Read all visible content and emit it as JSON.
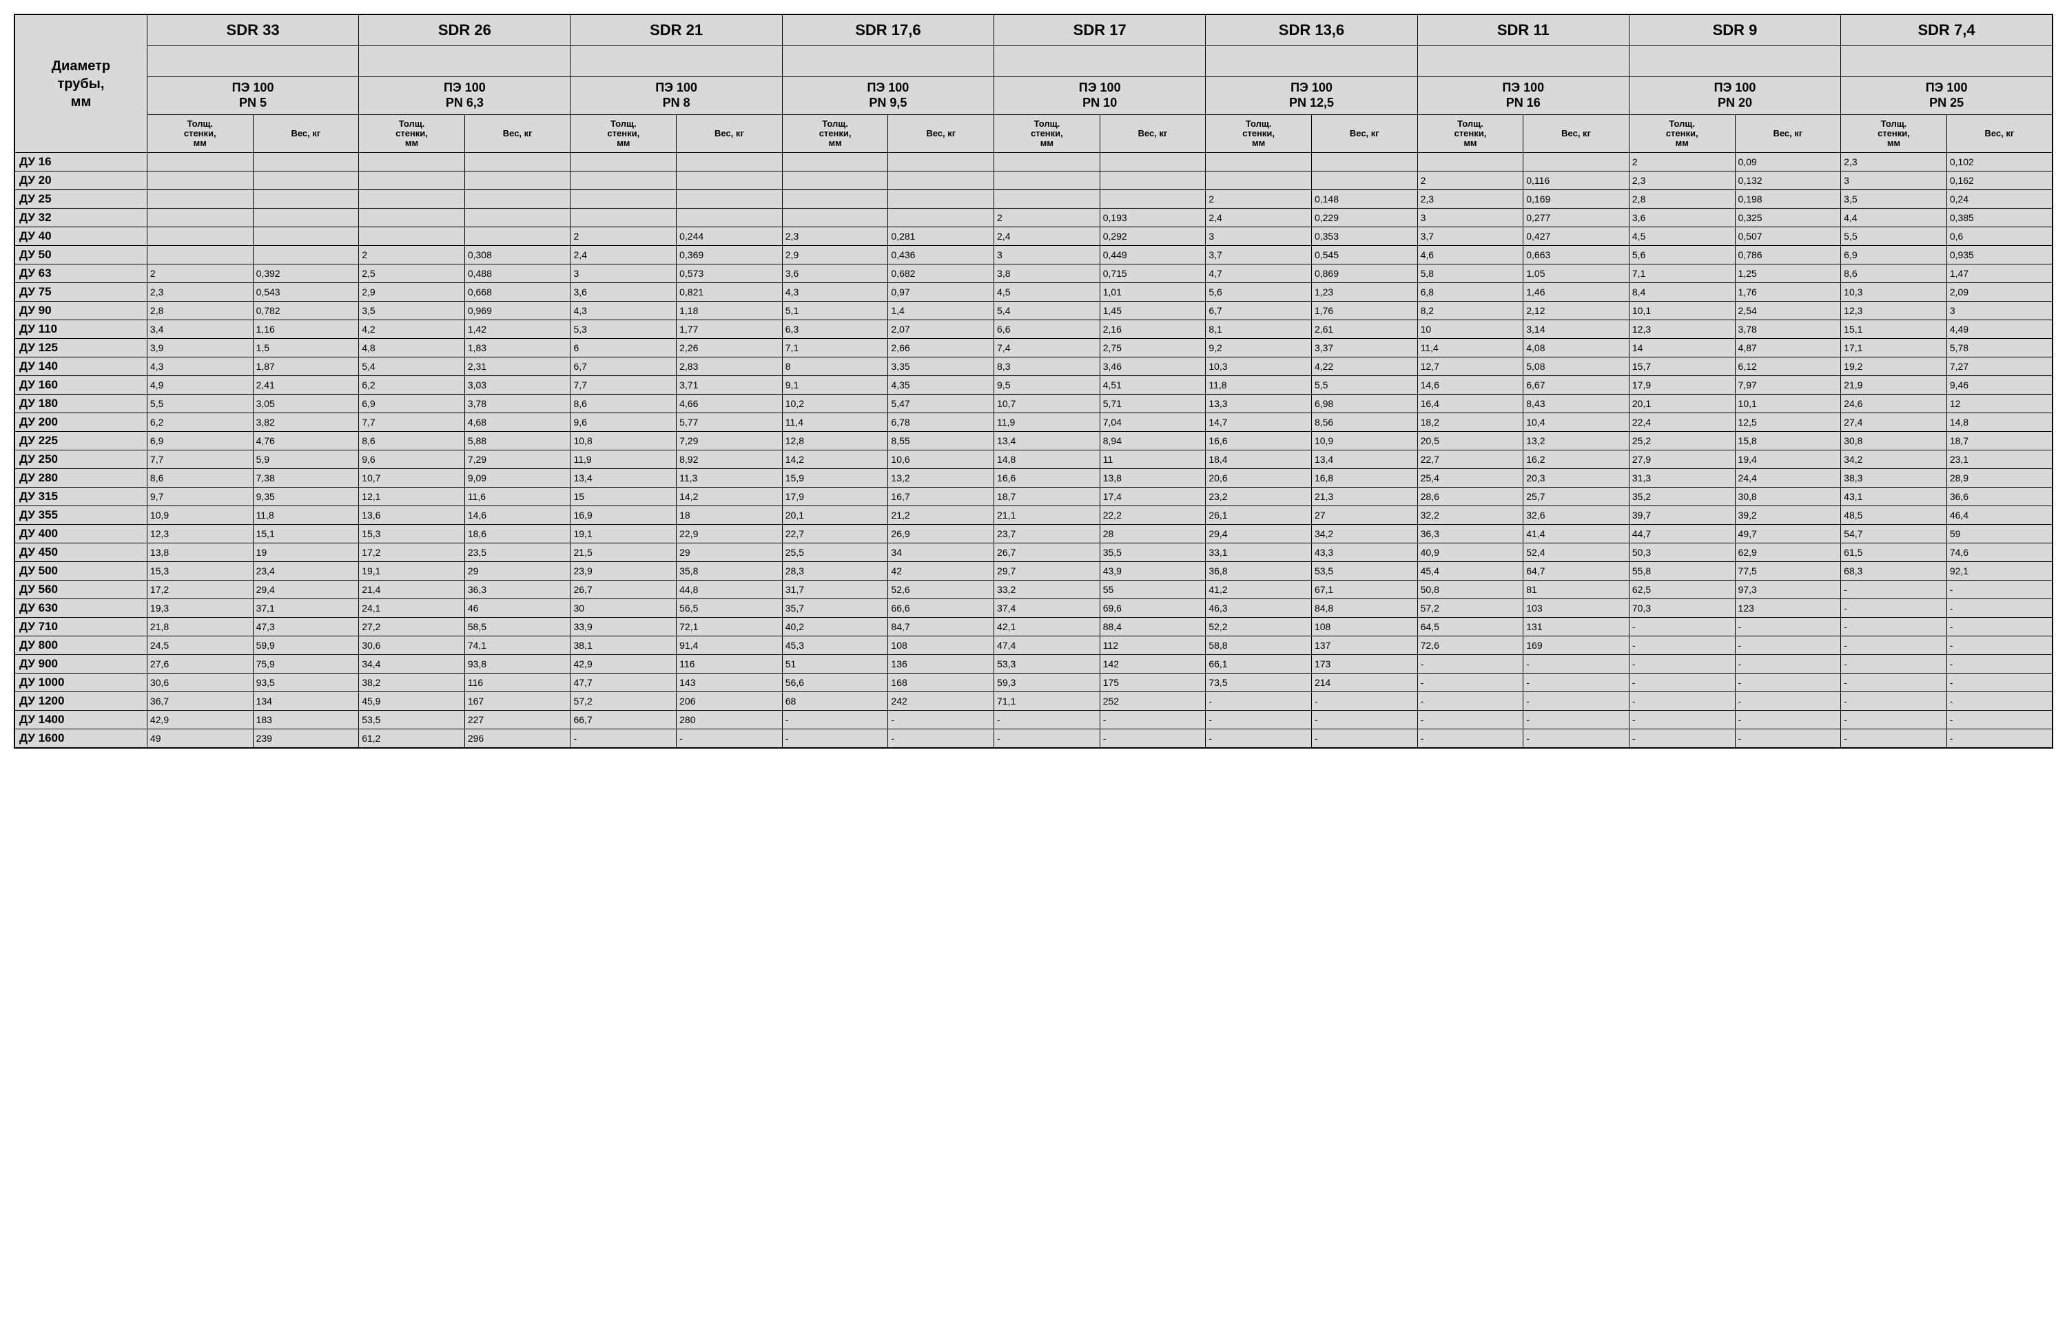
{
  "table": {
    "diameter_header": "Диаметр трубы, мм",
    "thickness_label": "Толщ. стенки, мм",
    "weight_label": "Вес, кг",
    "background_color": "#d9d9d9",
    "border_color": "#000000",
    "sdr_columns": [
      {
        "sdr": "SDR 33",
        "pn": "ПЭ 100\nPN 5"
      },
      {
        "sdr": "SDR 26",
        "pn": "ПЭ 100\nPN 6,3"
      },
      {
        "sdr": "SDR 21",
        "pn": "ПЭ 100\nPN 8"
      },
      {
        "sdr": "SDR 17,6",
        "pn": "ПЭ 100\nPN 9,5"
      },
      {
        "sdr": "SDR 17",
        "pn": "ПЭ 100\nPN 10"
      },
      {
        "sdr": "SDR 13,6",
        "pn": "ПЭ 100\nPN 12,5"
      },
      {
        "sdr": "SDR 11",
        "pn": "ПЭ 100\nPN 16"
      },
      {
        "sdr": "SDR 9",
        "pn": "ПЭ 100\nPN 20"
      },
      {
        "sdr": "SDR 7,4",
        "pn": "ПЭ 100\nPN 25"
      }
    ],
    "rows": [
      {
        "label": "ДУ 16",
        "cells": [
          "",
          "",
          "",
          "",
          "",
          "",
          "",
          "",
          "",
          "",
          "",
          "",
          "",
          "",
          "2",
          "0,09",
          "2,3",
          "0,102"
        ]
      },
      {
        "label": "ДУ 20",
        "cells": [
          "",
          "",
          "",
          "",
          "",
          "",
          "",
          "",
          "",
          "",
          "",
          "",
          "2",
          "0,116",
          "2,3",
          "0,132",
          "3",
          "0,162"
        ]
      },
      {
        "label": "ДУ 25",
        "cells": [
          "",
          "",
          "",
          "",
          "",
          "",
          "",
          "",
          "",
          "",
          "2",
          "0,148",
          "2,3",
          "0,169",
          "2,8",
          "0,198",
          "3,5",
          "0,24"
        ]
      },
      {
        "label": "ДУ 32",
        "cells": [
          "",
          "",
          "",
          "",
          "",
          "",
          "",
          "",
          "2",
          "0,193",
          "2,4",
          "0,229",
          "3",
          "0,277",
          "3,6",
          "0,325",
          "4,4",
          "0,385"
        ]
      },
      {
        "label": "ДУ 40",
        "cells": [
          "",
          "",
          "",
          "",
          "2",
          "0,244",
          "2,3",
          "0,281",
          "2,4",
          "0,292",
          "3",
          "0,353",
          "3,7",
          "0,427",
          "4,5",
          "0,507",
          "5,5",
          "0,6"
        ]
      },
      {
        "label": "ДУ 50",
        "cells": [
          "",
          "",
          "2",
          "0,308",
          "2,4",
          "0,369",
          "2,9",
          "0,436",
          "3",
          "0,449",
          "3,7",
          "0,545",
          "4,6",
          "0,663",
          "5,6",
          "0,786",
          "6,9",
          "0,935"
        ]
      },
      {
        "label": "ДУ 63",
        "cells": [
          "2",
          "0,392",
          "2,5",
          "0,488",
          "3",
          "0,573",
          "3,6",
          "0,682",
          "3,8",
          "0,715",
          "4,7",
          "0,869",
          "5,8",
          "1,05",
          "7,1",
          "1,25",
          "8,6",
          "1,47"
        ]
      },
      {
        "label": "ДУ 75",
        "cells": [
          "2,3",
          "0,543",
          "2,9",
          "0,668",
          "3,6",
          "0,821",
          "4,3",
          "0,97",
          "4,5",
          "1,01",
          "5,6",
          "1,23",
          "6,8",
          "1,46",
          "8,4",
          "1,76",
          "10,3",
          "2,09"
        ]
      },
      {
        "label": "ДУ 90",
        "cells": [
          "2,8",
          "0,782",
          "3,5",
          "0,969",
          "4,3",
          "1,18",
          "5,1",
          "1,4",
          "5,4",
          "1,45",
          "6,7",
          "1,76",
          "8,2",
          "2,12",
          "10,1",
          "2,54",
          "12,3",
          "3"
        ]
      },
      {
        "label": "ДУ 110",
        "cells": [
          "3,4",
          "1,16",
          "4,2",
          "1,42",
          "5,3",
          "1,77",
          "6,3",
          "2,07",
          "6,6",
          "2,16",
          "8,1",
          "2,61",
          "10",
          "3,14",
          "12,3",
          "3,78",
          "15,1",
          "4,49"
        ]
      },
      {
        "label": "ДУ 125",
        "cells": [
          "3,9",
          "1,5",
          "4,8",
          "1,83",
          "6",
          "2,26",
          "7,1",
          "2,66",
          "7,4",
          "2,75",
          "9,2",
          "3,37",
          "11,4",
          "4,08",
          "14",
          "4,87",
          "17,1",
          "5,78"
        ]
      },
      {
        "label": "ДУ 140",
        "cells": [
          "4,3",
          "1,87",
          "5,4",
          "2,31",
          "6,7",
          "2,83",
          "8",
          "3,35",
          "8,3",
          "3,46",
          "10,3",
          "4,22",
          "12,7",
          "5,08",
          "15,7",
          "6,12",
          "19,2",
          "7,27"
        ]
      },
      {
        "label": "ДУ 160",
        "cells": [
          "4,9",
          "2,41",
          "6,2",
          "3,03",
          "7,7",
          "3,71",
          "9,1",
          "4,35",
          "9,5",
          "4,51",
          "11,8",
          "5,5",
          "14,6",
          "6,67",
          "17,9",
          "7,97",
          "21,9",
          "9,46"
        ]
      },
      {
        "label": "ДУ 180",
        "cells": [
          "5,5",
          "3,05",
          "6,9",
          "3,78",
          "8,6",
          "4,66",
          "10,2",
          "5,47",
          "10,7",
          "5,71",
          "13,3",
          "6,98",
          "16,4",
          "8,43",
          "20,1",
          "10,1",
          "24,6",
          "12"
        ]
      },
      {
        "label": "ДУ 200",
        "cells": [
          "6,2",
          "3,82",
          "7,7",
          "4,68",
          "9,6",
          "5,77",
          "11,4",
          "6,78",
          "11,9",
          "7,04",
          "14,7",
          "8,56",
          "18,2",
          "10,4",
          "22,4",
          "12,5",
          "27,4",
          "14,8"
        ]
      },
      {
        "label": "ДУ 225",
        "cells": [
          "6,9",
          "4,76",
          "8,6",
          "5,88",
          "10,8",
          "7,29",
          "12,8",
          "8,55",
          "13,4",
          "8,94",
          "16,6",
          "10,9",
          "20,5",
          "13,2",
          "25,2",
          "15,8",
          "30,8",
          "18,7"
        ]
      },
      {
        "label": "ДУ 250",
        "cells": [
          "7,7",
          "5,9",
          "9,6",
          "7,29",
          "11,9",
          "8,92",
          "14,2",
          "10,6",
          "14,8",
          "11",
          "18,4",
          "13,4",
          "22,7",
          "16,2",
          "27,9",
          "19,4",
          "34,2",
          "23,1"
        ]
      },
      {
        "label": "ДУ 280",
        "cells": [
          "8,6",
          "7,38",
          "10,7",
          "9,09",
          "13,4",
          "11,3",
          "15,9",
          "13,2",
          "16,6",
          "13,8",
          "20,6",
          "16,8",
          "25,4",
          "20,3",
          "31,3",
          "24,4",
          "38,3",
          "28,9"
        ]
      },
      {
        "label": "ДУ 315",
        "cells": [
          "9,7",
          "9,35",
          "12,1",
          "11,6",
          "15",
          "14,2",
          "17,9",
          "16,7",
          "18,7",
          "17,4",
          "23,2",
          "21,3",
          "28,6",
          "25,7",
          "35,2",
          "30,8",
          "43,1",
          "36,6"
        ]
      },
      {
        "label": "ДУ 355",
        "cells": [
          "10,9",
          "11,8",
          "13,6",
          "14,6",
          "16,9",
          "18",
          "20,1",
          "21,2",
          "21,1",
          "22,2",
          "26,1",
          "27",
          "32,2",
          "32,6",
          "39,7",
          "39,2",
          "48,5",
          "46,4"
        ]
      },
      {
        "label": "ДУ 400",
        "cells": [
          "12,3",
          "15,1",
          "15,3",
          "18,6",
          "19,1",
          "22,9",
          "22,7",
          "26,9",
          "23,7",
          "28",
          "29,4",
          "34,2",
          "36,3",
          "41,4",
          "44,7",
          "49,7",
          "54,7",
          "59"
        ]
      },
      {
        "label": "ДУ 450",
        "cells": [
          "13,8",
          "19",
          "17,2",
          "23,5",
          "21,5",
          "29",
          "25,5",
          "34",
          "26,7",
          "35,5",
          "33,1",
          "43,3",
          "40,9",
          "52,4",
          "50,3",
          "62,9",
          "61,5",
          "74,6"
        ]
      },
      {
        "label": "ДУ 500",
        "cells": [
          "15,3",
          "23,4",
          "19,1",
          "29",
          "23,9",
          "35,8",
          "28,3",
          "42",
          "29,7",
          "43,9",
          "36,8",
          "53,5",
          "45,4",
          "64,7",
          "55,8",
          "77,5",
          "68,3",
          "92,1"
        ]
      },
      {
        "label": "ДУ 560",
        "cells": [
          "17,2",
          "29,4",
          "21,4",
          "36,3",
          "26,7",
          "44,8",
          "31,7",
          "52,6",
          "33,2",
          "55",
          "41,2",
          "67,1",
          "50,8",
          "81",
          "62,5",
          "97,3",
          "-",
          "-"
        ]
      },
      {
        "label": "ДУ 630",
        "cells": [
          "19,3",
          "37,1",
          "24,1",
          "46",
          "30",
          "56,5",
          "35,7",
          "66,6",
          "37,4",
          "69,6",
          "46,3",
          "84,8",
          "57,2",
          "103",
          "70,3",
          "123",
          "-",
          "-"
        ]
      },
      {
        "label": "ДУ 710",
        "cells": [
          "21,8",
          "47,3",
          "27,2",
          "58,5",
          "33,9",
          "72,1",
          "40,2",
          "84,7",
          "42,1",
          "88,4",
          "52,2",
          "108",
          "64,5",
          "131",
          "-",
          "-",
          "-",
          "-"
        ]
      },
      {
        "label": "ДУ 800",
        "cells": [
          "24,5",
          "59,9",
          "30,6",
          "74,1",
          "38,1",
          "91,4",
          "45,3",
          "108",
          "47,4",
          "112",
          "58,8",
          "137",
          "72,6",
          "169",
          "-",
          "-",
          "-",
          "-"
        ]
      },
      {
        "label": "ДУ 900",
        "cells": [
          "27,6",
          "75,9",
          "34,4",
          "93,8",
          "42,9",
          "116",
          "51",
          "136",
          "53,3",
          "142",
          "66,1",
          "173",
          "-",
          "-",
          "-",
          "-",
          "-",
          "-"
        ]
      },
      {
        "label": "ДУ 1000",
        "cells": [
          "30,6",
          "93,5",
          "38,2",
          "116",
          "47,7",
          "143",
          "56,6",
          "168",
          "59,3",
          "175",
          "73,5",
          "214",
          "-",
          "-",
          "-",
          "-",
          "-",
          "-"
        ]
      },
      {
        "label": "ДУ 1200",
        "cells": [
          "36,7",
          "134",
          "45,9",
          "167",
          "57,2",
          "206",
          "68",
          "242",
          "71,1",
          "252",
          "-",
          "-",
          "-",
          "-",
          "-",
          "-",
          "-",
          "-"
        ]
      },
      {
        "label": "ДУ 1400",
        "cells": [
          "42,9",
          "183",
          "53,5",
          "227",
          "66,7",
          "280",
          "-",
          "-",
          "-",
          "-",
          "-",
          "-",
          "-",
          "-",
          "-",
          "-",
          "-",
          "-"
        ]
      },
      {
        "label": "ДУ 1600",
        "cells": [
          "49",
          "239",
          "61,2",
          "296",
          "-",
          "-",
          "-",
          "-",
          "-",
          "-",
          "-",
          "-",
          "-",
          "-",
          "-",
          "-",
          "-",
          "-"
        ]
      }
    ]
  }
}
